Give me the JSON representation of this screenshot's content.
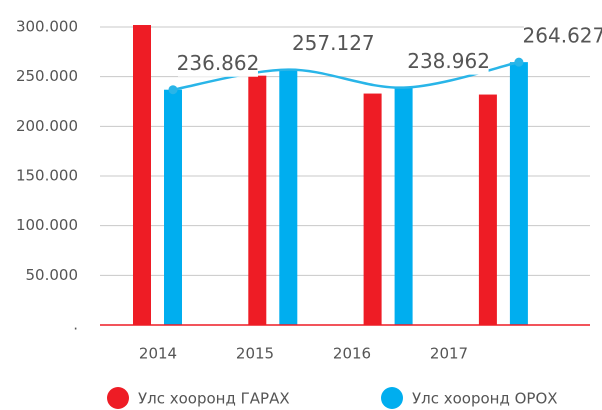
{
  "chart_data": {
    "type": "bar",
    "categories": [
      "2014",
      "2015",
      "2016",
      "2017"
    ],
    "series": [
      {
        "name": "Улс хооронд ГАРАХ",
        "color": "#ee1c25",
        "values": [
          302000,
          251000,
          233000,
          232000
        ]
      },
      {
        "name": "Улс хооронд ОРОХ",
        "color": "#00aeef",
        "line_color": "#29b5e8",
        "values": [
          236862,
          257127,
          238962,
          264627
        ],
        "value_labels": [
          "236.862",
          "257.127",
          "238.962",
          "264.627"
        ]
      }
    ],
    "ylim": [
      0,
      300000
    ],
    "yticks": [
      {
        "value": 0,
        "label": "."
      },
      {
        "value": 50000,
        "label": "50.000"
      },
      {
        "value": 100000,
        "label": "100.000"
      },
      {
        "value": 150000,
        "label": "150.000"
      },
      {
        "value": 200000,
        "label": "200.000"
      },
      {
        "value": 250000,
        "label": "250.000"
      },
      {
        "value": 300000,
        "label": "300.000"
      }
    ],
    "grid": true
  }
}
